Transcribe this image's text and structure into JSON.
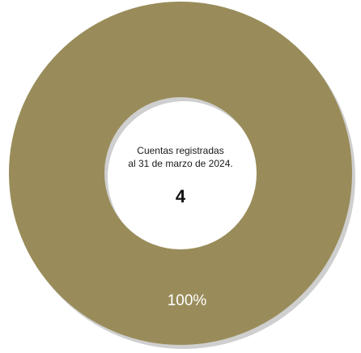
{
  "chart_data": {
    "type": "pie",
    "donut": true,
    "slices": [
      {
        "value": 100,
        "color": "#998c5a",
        "label": "100%"
      }
    ],
    "center_caption_lines": [
      "Cuentas registradas",
      "al 31 de marzo de 2024."
    ],
    "center_value": "4",
    "label_color": "#ffffff",
    "shadow_color": "#cfcfcf"
  }
}
